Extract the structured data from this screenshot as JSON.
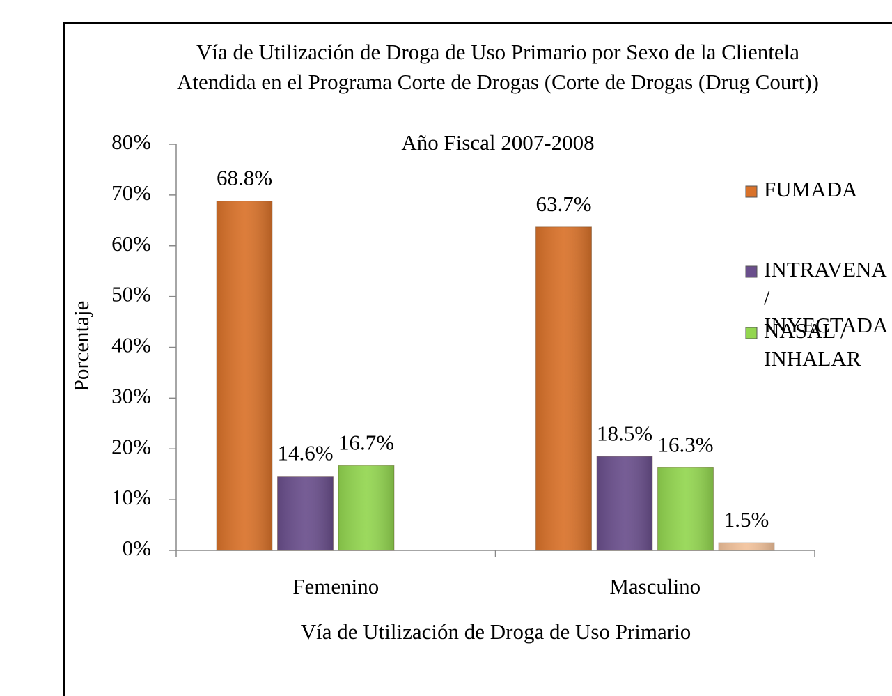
{
  "chart_data": {
    "type": "bar",
    "title": "Vía de Utilización de Droga de Uso Primario por Sexo de la Clientela Atendida en el Programa Corte de Drogas (Corte de Drogas (Drug Court))",
    "subtitle": "Año Fiscal 2007-2008",
    "x_label": "Vía de Utilización de Droga de Uso Primario",
    "y_label": "Porcentaje",
    "categories": [
      "Femenino",
      "Masculino"
    ],
    "series": [
      {
        "name": "FUMADA",
        "color": "#d9722a",
        "values": [
          68.8,
          63.7
        ],
        "value_labels": [
          "68.8%",
          "63.7%"
        ]
      },
      {
        "name": "INTRAVENA / INYECTADA",
        "color": "#6a4f8c",
        "values": [
          14.6,
          18.5
        ],
        "value_labels": [
          "14.6%",
          "18.5%"
        ]
      },
      {
        "name": "NASAL / INHALAR",
        "color": "#93d650",
        "values": [
          16.7,
          16.3
        ],
        "value_labels": [
          "16.7%",
          "16.3%"
        ]
      },
      {
        "color": "#f2c29b",
        "values": [
          null,
          1.5
        ],
        "value_labels": [
          null,
          "1.5%"
        ]
      }
    ],
    "ylim": [
      0,
      80
    ],
    "yticks": [
      {
        "value": 0,
        "label": "0%"
      },
      {
        "value": 10,
        "label": "10%"
      },
      {
        "value": 20,
        "label": "20%"
      },
      {
        "value": 30,
        "label": "30%"
      },
      {
        "value": 40,
        "label": "40%"
      },
      {
        "value": 50,
        "label": "50%"
      },
      {
        "value": 60,
        "label": "60%"
      },
      {
        "value": 70,
        "label": "70%"
      },
      {
        "value": 80,
        "label": "80%"
      }
    ],
    "legend": "right"
  }
}
